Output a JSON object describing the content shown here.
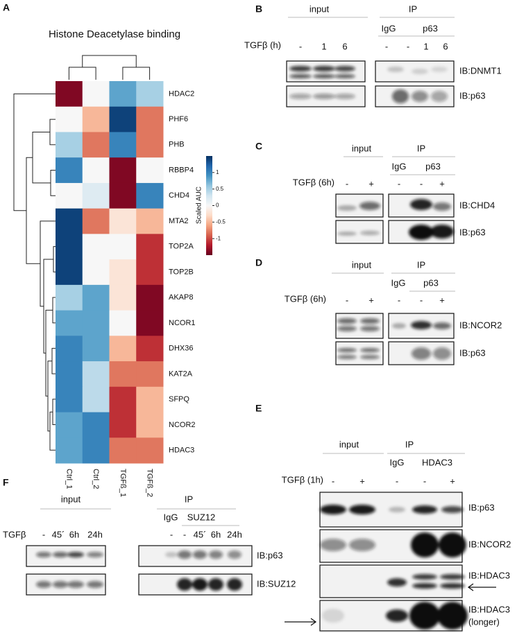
{
  "chart_data": {
    "type": "heatmap",
    "panel_label": "A",
    "title": "Histone Deacetylase binding",
    "rows": [
      "HDAC2",
      "PHF6",
      "PHB",
      "RBBP4",
      "CHD4",
      "MTA2",
      "TOP2A",
      "TOP2B",
      "AKAP8",
      "NCOR1",
      "DHX36",
      "KAT2A",
      "SFPQ",
      "NCOR2",
      "HDAC3"
    ],
    "columns": [
      "Ctrl_1",
      "Ctrl_2",
      "TGFß_1",
      "TGFß_2"
    ],
    "values": [
      [
        -1.4,
        0,
        0.8,
        0.5
      ],
      [
        0,
        -0.5,
        1.4,
        -0.8
      ],
      [
        0.5,
        -0.8,
        1.0,
        -0.8
      ],
      [
        1.0,
        0,
        -1.4,
        0
      ],
      [
        0,
        0.2,
        -1.4,
        1.0
      ],
      [
        1.4,
        -0.8,
        -0.2,
        -0.5
      ],
      [
        1.4,
        0,
        0,
        -1.1
      ],
      [
        1.4,
        0,
        -0.2,
        -1.1
      ],
      [
        0.5,
        0.8,
        -0.2,
        -1.4
      ],
      [
        0.8,
        0.8,
        0,
        -1.4
      ],
      [
        1.0,
        0.8,
        -0.5,
        -1.1
      ],
      [
        1.0,
        0.4,
        -0.8,
        -0.8
      ],
      [
        1.0,
        0.4,
        -1.1,
        -0.5
      ],
      [
        0.8,
        1.0,
        -1.1,
        -0.5
      ],
      [
        0.8,
        1.0,
        -0.8,
        -0.8
      ]
    ],
    "colorbar_label": "Scaled AUC",
    "clim": [
      -1.5,
      1.5
    ],
    "colorbar_ticks": [
      1,
      0.5,
      0,
      -0.5,
      -1
    ],
    "colors": [
      "#67001f",
      "#b2182b",
      "#d6604d",
      "#f4a582",
      "#fddbc7",
      "#f7f7f7",
      "#d1e5f0",
      "#92c5de",
      "#4393c3",
      "#2166ac",
      "#053061"
    ]
  },
  "panels": {
    "B": {
      "label": "B",
      "groups": [
        "input",
        "IP"
      ],
      "ip_groups": [
        "IgG",
        "p63"
      ],
      "treatment": "TGFβ (h)",
      "lanes": [
        "-",
        "1",
        "6",
        "-",
        "-",
        "1",
        "6"
      ],
      "blots": [
        "IB:DNMT1",
        "IB:p63"
      ]
    },
    "C": {
      "label": "C",
      "groups": [
        "input",
        "IP"
      ],
      "ip_groups": [
        "IgG",
        "p63"
      ],
      "treatment": "TGFβ (6h)",
      "lanes": [
        "-",
        "+",
        "-",
        "-",
        "+"
      ],
      "blots": [
        "IB:CHD4",
        "IB:p63"
      ]
    },
    "D": {
      "label": "D",
      "groups": [
        "input",
        "IP"
      ],
      "ip_groups": [
        "IgG",
        "p63"
      ],
      "treatment": "TGFβ (6h)",
      "lanes": [
        "-",
        "+",
        "-",
        "-",
        "+"
      ],
      "blots": [
        "IB:NCOR2",
        "IB:p63"
      ]
    },
    "E": {
      "label": "E",
      "groups": [
        "input",
        "IP"
      ],
      "ip_groups": [
        "IgG",
        "HDAC3"
      ],
      "treatment": "TGFβ (1h)",
      "lanes": [
        "-",
        "+",
        "-",
        "-",
        "+"
      ],
      "blots": [
        "IB:p63",
        "IB:NCOR2",
        "IB:HDAC3",
        "IB:HDAC3"
      ],
      "blot_note": "(longer)"
    },
    "F": {
      "label": "F",
      "groups": [
        "input",
        "IP"
      ],
      "ip_groups": [
        "IgG",
        "SUZ12"
      ],
      "treatment": "TGFβ",
      "lanes": [
        "-",
        "45´",
        "6h",
        "24h",
        "-",
        "-",
        "45´",
        "6h",
        "24h"
      ],
      "blots": [
        "IB:p63",
        "IB:SUZ12"
      ]
    }
  }
}
